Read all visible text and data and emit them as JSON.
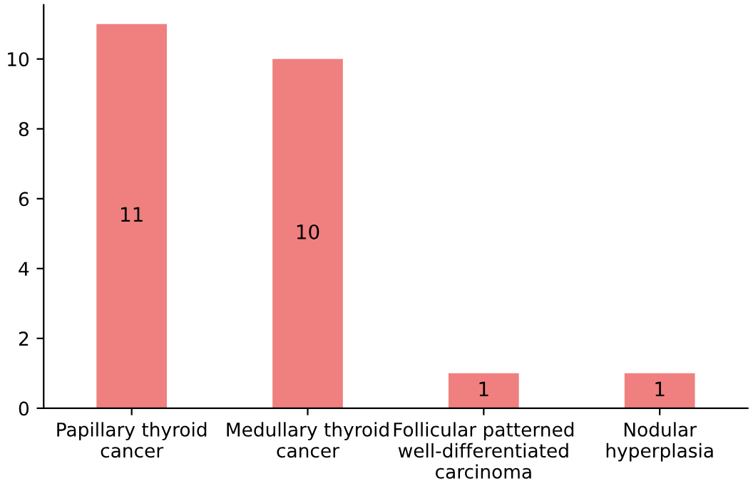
{
  "chart_data": {
    "type": "bar",
    "categories": [
      "Papillary thyroid\ncancer",
      "Medullary thyroid\ncancer",
      "Follicular patterned\nwell-differentiated\ncarcinoma",
      "Nodular\nhyperplasia"
    ],
    "values": [
      11,
      10,
      1,
      1
    ],
    "color": "#f08080",
    "ylim": [
      0,
      11.55
    ],
    "yticks": [
      0,
      2,
      4,
      6,
      8,
      10
    ],
    "grid": false,
    "data_labels": true
  }
}
